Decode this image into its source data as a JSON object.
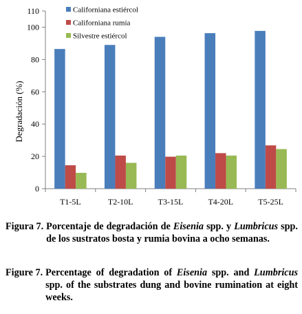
{
  "chart_data": {
    "type": "bar",
    "title": "",
    "xlabel": "",
    "ylabel": "Degradación (%)",
    "ylim": [
      0,
      110
    ],
    "yticks": [
      0,
      20,
      40,
      60,
      80,
      100,
      110
    ],
    "grid": false,
    "legend_position": "top-right",
    "categories": [
      "T1-5L",
      "T2-10L",
      "T3-15L",
      "T4-20L",
      "T5-25L"
    ],
    "series": [
      {
        "name": "Californiana estiércol",
        "color": "#4a7ebb",
        "values": [
          86.5,
          89,
          94,
          96.3,
          97.7
        ]
      },
      {
        "name": "Californiana rumia",
        "color": "#be4b48",
        "values": [
          14.5,
          20.5,
          19.8,
          22,
          26.8
        ]
      },
      {
        "name": "Silvestre estiércol",
        "color": "#98b954",
        "values": [
          9.8,
          16,
          20.5,
          20.5,
          24.5
        ]
      }
    ]
  },
  "caption_es": {
    "label": "Figura 7.",
    "t1": "Porcentaje de degradación de ",
    "i1": "Eisenia",
    "t2": " spp. y ",
    "i2": "Lumbricus",
    "t3": " spp. de los sustratos bosta y rumia bovina a ocho semanas."
  },
  "caption_en": {
    "label": "Figure 7.",
    "t1": "Percentage of degradation of ",
    "i1": "Eisenia",
    "t2": " spp. and ",
    "i2": "Lumbricus",
    "t3": " spp. of the substrates dung and bovine rumination at eight weeks."
  }
}
